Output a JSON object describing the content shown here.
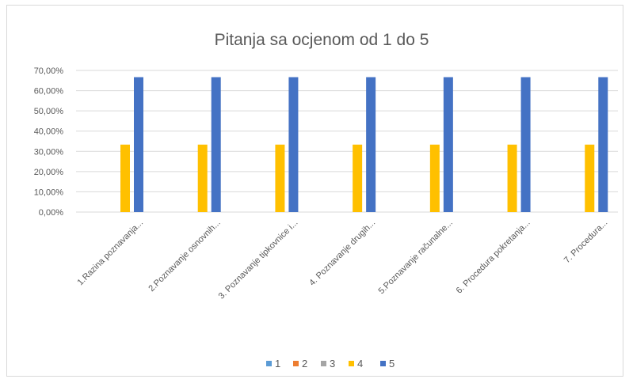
{
  "chart_data": {
    "type": "bar",
    "title": "Pitanja sa ocjenom od 1 do 5",
    "categories": [
      "1.Razina poznavanja...",
      "2.Poznavanje osnovnih...",
      "3. Poznavanje tipkovnice i...",
      "4. Poznavanje drugih...",
      "5.Poznavanje računalne...",
      "6. Procedura pokretanja...",
      "7. Procedura..."
    ],
    "series": [
      {
        "name": "1",
        "color": "#5B9BD5",
        "values": [
          0,
          0,
          0,
          0,
          0,
          0,
          0
        ]
      },
      {
        "name": "2",
        "color": "#ED7D31",
        "values": [
          0,
          0,
          0,
          0,
          0,
          0,
          0
        ]
      },
      {
        "name": "3",
        "color": "#A5A5A5",
        "values": [
          0,
          0,
          0,
          0,
          0,
          0,
          0
        ]
      },
      {
        "name": "4",
        "color": "#FFC000",
        "values": [
          33.33,
          33.33,
          33.33,
          33.33,
          33.33,
          33.33,
          33.33
        ]
      },
      {
        "name": "5",
        "color": "#4472C4",
        "values": [
          66.67,
          66.67,
          66.67,
          66.67,
          66.67,
          66.67,
          66.67
        ]
      }
    ],
    "yticks": [
      "0,00%",
      "10,00%",
      "20,00%",
      "30,00%",
      "40,00%",
      "50,00%",
      "60,00%",
      "70,00%"
    ],
    "ylim": [
      0,
      70
    ],
    "grid": true,
    "legend_position": "bottom"
  }
}
